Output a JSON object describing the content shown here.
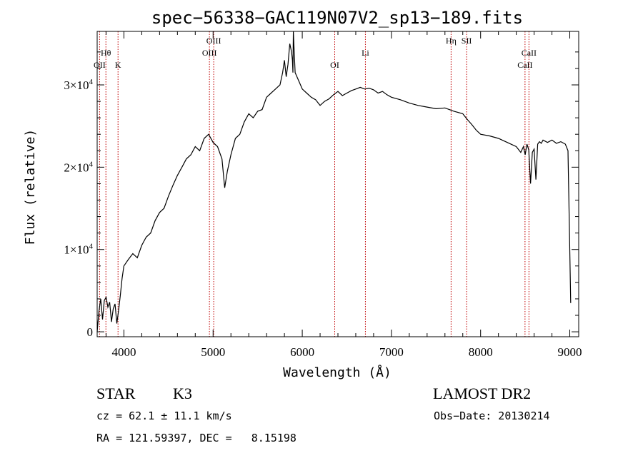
{
  "chart_data": {
    "type": "line",
    "title": "spec−56338−GAC119N07V2_sp13−189.fits",
    "xlabel": "Wavelength (Å)",
    "ylabel": "Flux (relative)",
    "xlim": [
      3700,
      9100
    ],
    "ylim": [
      -600,
      36500
    ],
    "x_ticks": [
      4000,
      5000,
      6000,
      7000,
      8000,
      9000
    ],
    "x_tick_labels": [
      "4000",
      "5000",
      "6000",
      "7000",
      "8000",
      "9000"
    ],
    "y_ticks": [
      0,
      10000,
      20000,
      30000
    ],
    "y_tick_labels": [
      {
        "mantissa": "0",
        "exp": ""
      },
      {
        "mantissa": "1×10",
        "exp": "4"
      },
      {
        "mantissa": "2×10",
        "exp": "4"
      },
      {
        "mantissa": "3×10",
        "exp": "4"
      }
    ],
    "grid": false,
    "series": [
      {
        "color": "#000000",
        "x": [
          3700,
          3720,
          3740,
          3760,
          3780,
          3800,
          3820,
          3840,
          3860,
          3880,
          3900,
          3920,
          3940,
          3960,
          3980,
          4000,
          4050,
          4100,
          4150,
          4200,
          4250,
          4300,
          4350,
          4400,
          4450,
          4500,
          4550,
          4600,
          4650,
          4700,
          4750,
          4800,
          4850,
          4900,
          4950,
          5000,
          5050,
          5100,
          5130,
          5160,
          5200,
          5250,
          5300,
          5350,
          5400,
          5450,
          5500,
          5550,
          5600,
          5650,
          5700,
          5750,
          5780,
          5800,
          5820,
          5840,
          5860,
          5880,
          5890,
          5895,
          5900,
          5910,
          5920,
          5940,
          5960,
          5980,
          6000,
          6050,
          6100,
          6150,
          6200,
          6250,
          6300,
          6350,
          6400,
          6450,
          6500,
          6550,
          6600,
          6650,
          6700,
          6750,
          6800,
          6850,
          6900,
          6950,
          7000,
          7100,
          7200,
          7300,
          7400,
          7500,
          7600,
          7700,
          7800,
          7850,
          7900,
          7950,
          8000,
          8100,
          8200,
          8300,
          8400,
          8450,
          8480,
          8500,
          8510,
          8520,
          8540,
          8560,
          8580,
          8600,
          8620,
          8640,
          8660,
          8680,
          8700,
          8750,
          8800,
          8850,
          8900,
          8950,
          8980,
          9000,
          9010
        ],
        "y": [
          0,
          2500,
          4000,
          1500,
          3800,
          4200,
          3000,
          3600,
          1200,
          2800,
          3400,
          1000,
          2600,
          4500,
          6500,
          8000,
          8800,
          9500,
          9000,
          10500,
          11500,
          12000,
          13500,
          14500,
          15000,
          16500,
          17800,
          19000,
          20000,
          21000,
          21500,
          22500,
          22000,
          23500,
          24000,
          23000,
          22500,
          21000,
          17500,
          19500,
          21500,
          23500,
          24000,
          25500,
          26500,
          26000,
          26800,
          27000,
          28500,
          29000,
          29500,
          30000,
          31500,
          33000,
          31000,
          32500,
          35000,
          34000,
          33000,
          31500,
          36500,
          34000,
          31500,
          31000,
          30500,
          30000,
          29500,
          29000,
          28500,
          28200,
          27500,
          28000,
          28300,
          28800,
          29200,
          28700,
          29000,
          29300,
          29500,
          29700,
          29500,
          29600,
          29400,
          29000,
          29200,
          28800,
          28500,
          28200,
          27800,
          27500,
          27300,
          27100,
          27200,
          26800,
          26500,
          25800,
          25200,
          24500,
          24000,
          23800,
          23500,
          23000,
          22500,
          21800,
          22500,
          21500,
          22200,
          22800,
          22100,
          18000,
          21800,
          22200,
          18500,
          22800,
          23100,
          22900,
          23300,
          23000,
          23300,
          22900,
          23100,
          22800,
          22000,
          10000,
          3500
        ]
      }
    ],
    "line_markers": [
      {
        "x": 3727,
        "label": "OII",
        "row": "low"
      },
      {
        "x": 3798,
        "label": "Hθ",
        "row": "mid"
      },
      {
        "x": 3934,
        "label": "K",
        "row": "low"
      },
      {
        "x": 4959,
        "label": "OIII",
        "row": "mid"
      },
      {
        "x": 5007,
        "label": "OIII",
        "row": "high"
      },
      {
        "x": 6364,
        "label": "OI",
        "row": "low"
      },
      {
        "x": 6708,
        "label": "Li",
        "row": "mid"
      },
      {
        "x": 7669,
        "label": "Hη",
        "row": "high"
      },
      {
        "x": 7843,
        "label": "SII",
        "row": "high"
      },
      {
        "x": 8498,
        "label": "CaII",
        "row": "low"
      },
      {
        "x": 8542,
        "label": "CaII",
        "row": "mid"
      }
    ]
  },
  "info": {
    "class": "STAR",
    "subclass": "K3",
    "survey": "LAMOST DR2",
    "cz": "cz = 62.1 ± 11.1 km/s",
    "obs_date": "Obs−Date: 20130214",
    "coords": "RA = 121.59397, DEC =   8.15198"
  }
}
